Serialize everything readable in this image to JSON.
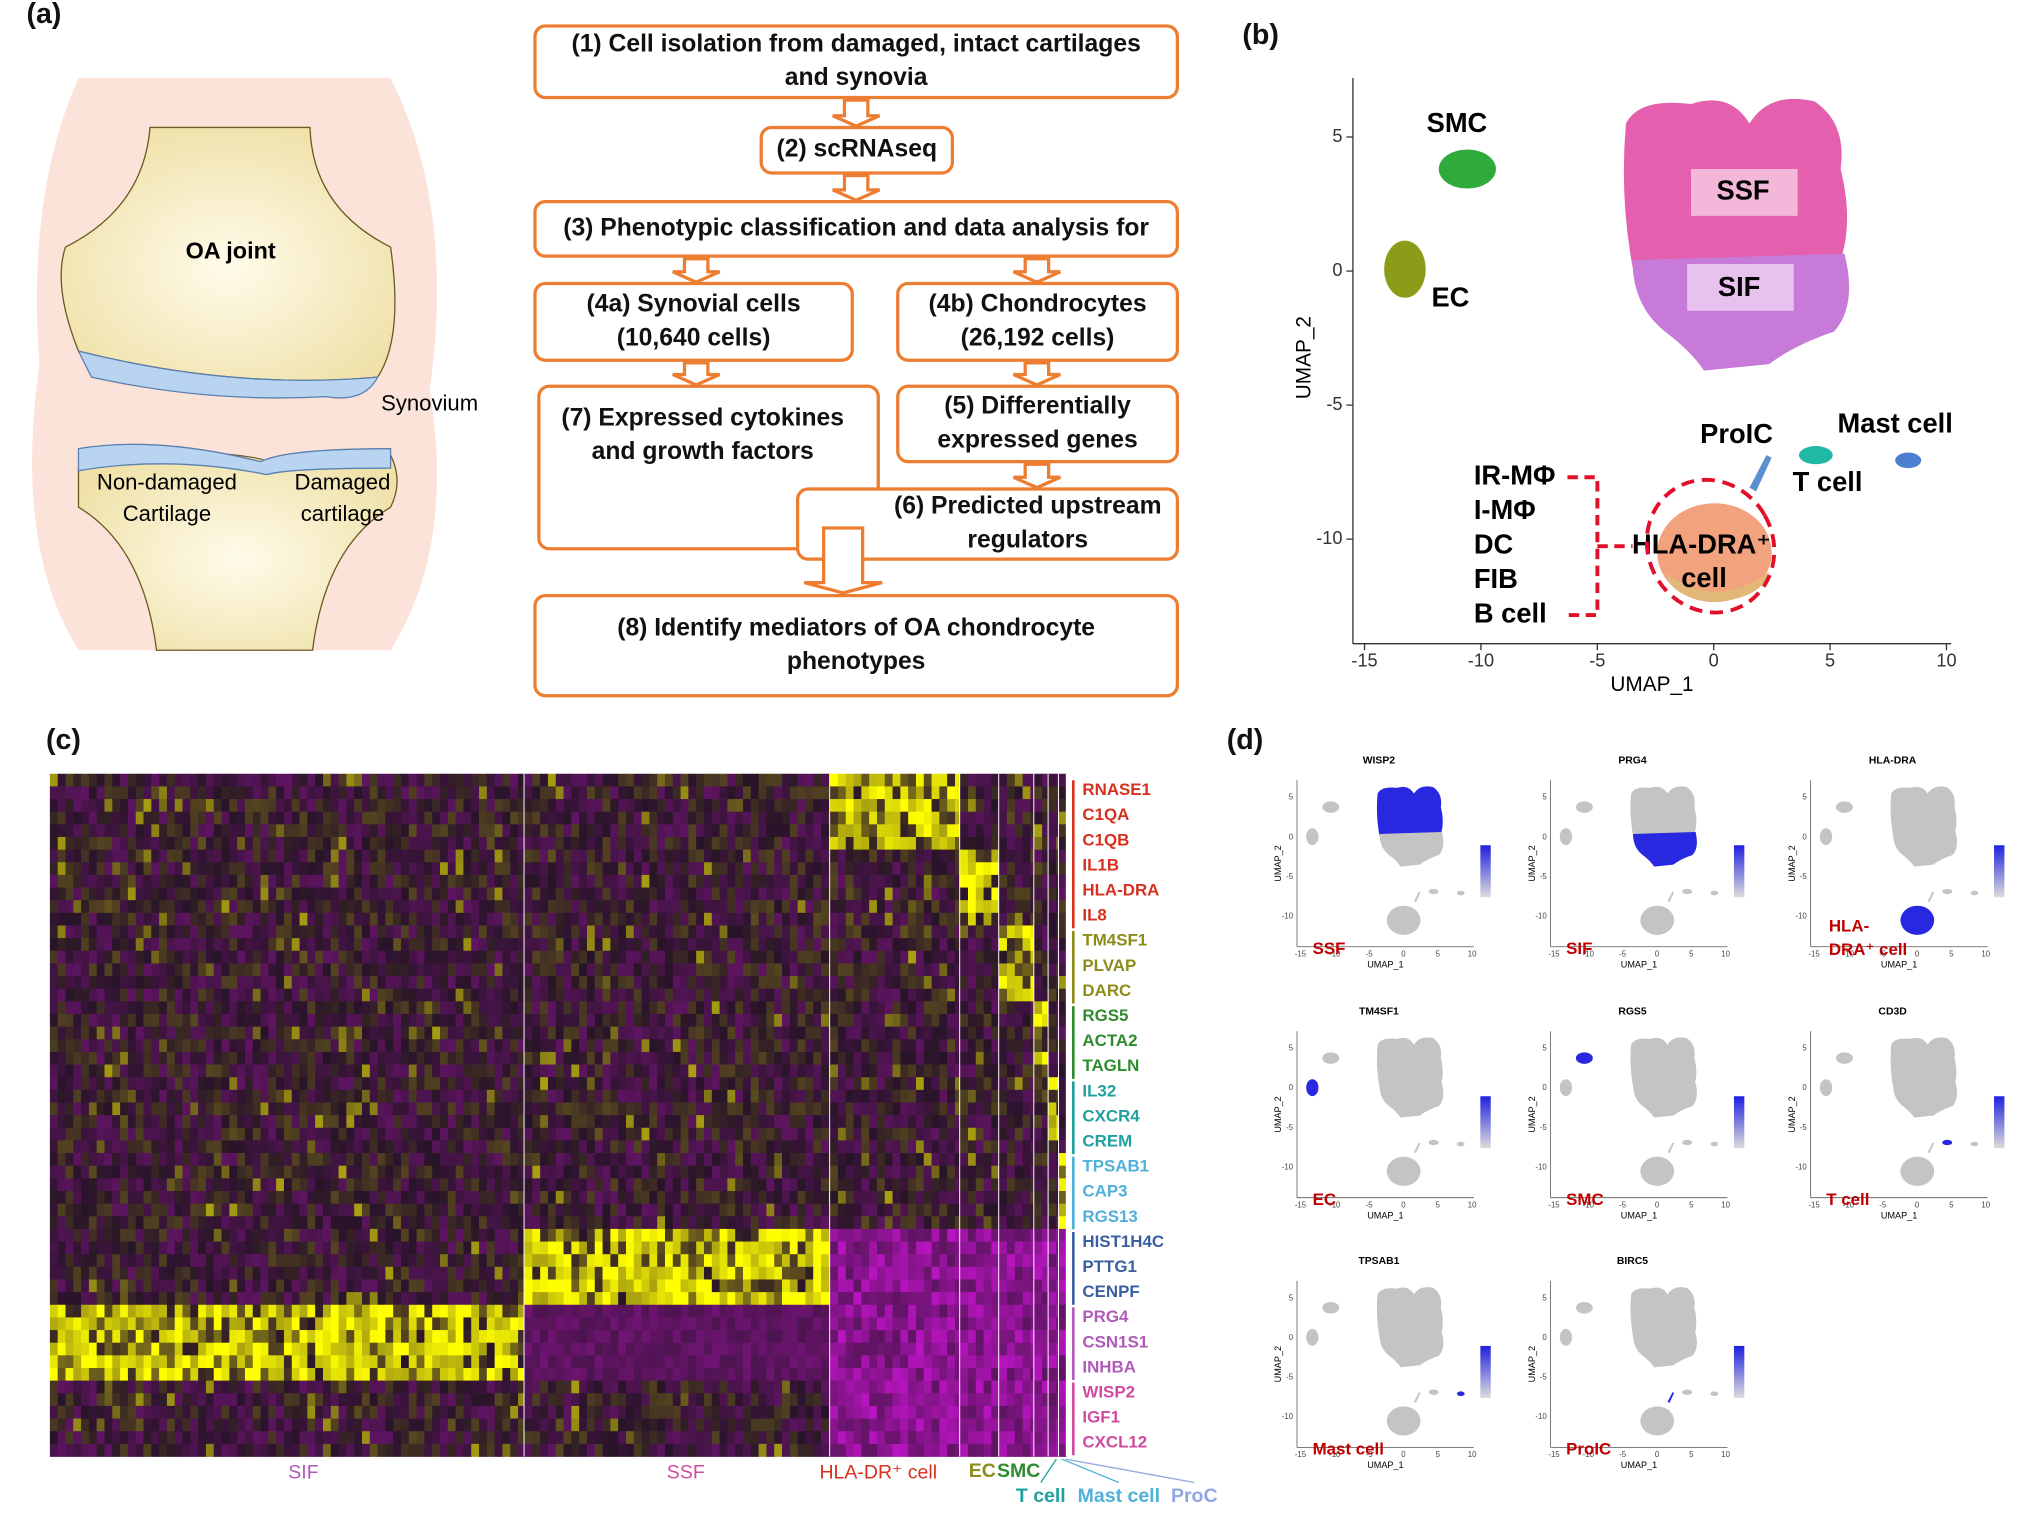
{
  "panel_labels": [
    "(a)",
    "(b)",
    "(c)",
    "(d)"
  ],
  "joint": {
    "title": "OA joint",
    "synovium": "Synovium",
    "non_damaged": [
      "Non-damaged",
      "Cartilage"
    ],
    "damaged": [
      "Damaged",
      "cartilage"
    ]
  },
  "flow": {
    "steps": [
      {
        "lines": [
          "(1) Cell isolation from damaged, intact cartilages",
          "and synovia"
        ]
      },
      {
        "lines": [
          "(2) scRNAseq"
        ]
      },
      {
        "lines": [
          "(3) Phenotypic classification and data analysis for"
        ]
      },
      {
        "lines": [
          "(4a) Synovial cells",
          "(10,640 cells)"
        ]
      },
      {
        "lines": [
          "(4b) Chondrocytes",
          "(26,192 cells)"
        ]
      },
      {
        "lines": [
          "(7) Expressed cytokines",
          "and growth factors"
        ]
      },
      {
        "lines": [
          "(5) Differentially",
          "expressed genes"
        ]
      },
      {
        "lines": [
          "(6) Predicted upstream",
          "regulators"
        ]
      },
      {
        "lines": [
          "(8) Identify mediators of OA chondrocyte",
          "phenotypes"
        ]
      }
    ]
  },
  "umap": {
    "x_label": "UMAP_1",
    "y_label": "UMAP_2",
    "xlim": [
      -15.5,
      10.2
    ],
    "ylim": [
      -13.9,
      7.2
    ],
    "xticks": [
      -15,
      -10,
      -5,
      0,
      5,
      10
    ],
    "yticks": [
      -10,
      -5,
      0,
      5
    ],
    "clusters": {
      "smc": "SMC",
      "ec": "EC",
      "ssf": "SSF",
      "sif": "SIF",
      "proic": "ProIC",
      "mast": "Mast cell",
      "t": "T cell",
      "hla": [
        "HLA-DRA⁺",
        "cell"
      ]
    },
    "hla_members": [
      "IR-MΦ",
      "I-MΦ",
      "DC",
      "FIB",
      "B cell"
    ]
  },
  "heatmap": {
    "genes": [
      "RNASE1",
      "C1QA",
      "C1QB",
      "IL1B",
      "HLA-DRA",
      "IL8",
      "TM4SF1",
      "PLVAP",
      "DARC",
      "RGS5",
      "ACTA2",
      "TAGLN",
      "IL32",
      "CXCR4",
      "CREM",
      "TPSAB1",
      "CAP3",
      "RGS13",
      "HIST1H4C",
      "PTTG1",
      "CENPF",
      "PRG4",
      "CSN1S1",
      "INHBA",
      "WISP2",
      "IGF1",
      "CXCL12"
    ],
    "clusters": [
      "SIF",
      "SSF",
      "HLA-DR⁺ cell",
      "EC",
      "SMC",
      "T cell",
      "Mast cell",
      "ProC"
    ]
  },
  "features": [
    {
      "gene": "WISP2",
      "label": "SSF"
    },
    {
      "gene": "PRG4",
      "label": "SIF"
    },
    {
      "gene": "HLA-DRA",
      "label": [
        "HLA-",
        "DRA⁺ cell"
      ]
    },
    {
      "gene": "TM4SF1",
      "label": "EC"
    },
    {
      "gene": "RGS5",
      "label": "SMC"
    },
    {
      "gene": "CD3D",
      "label": "T cell"
    },
    {
      "gene": "TPSAB1",
      "label": "Mast cell"
    },
    {
      "gene": "BIRC5",
      "label": "ProIC"
    }
  ]
}
